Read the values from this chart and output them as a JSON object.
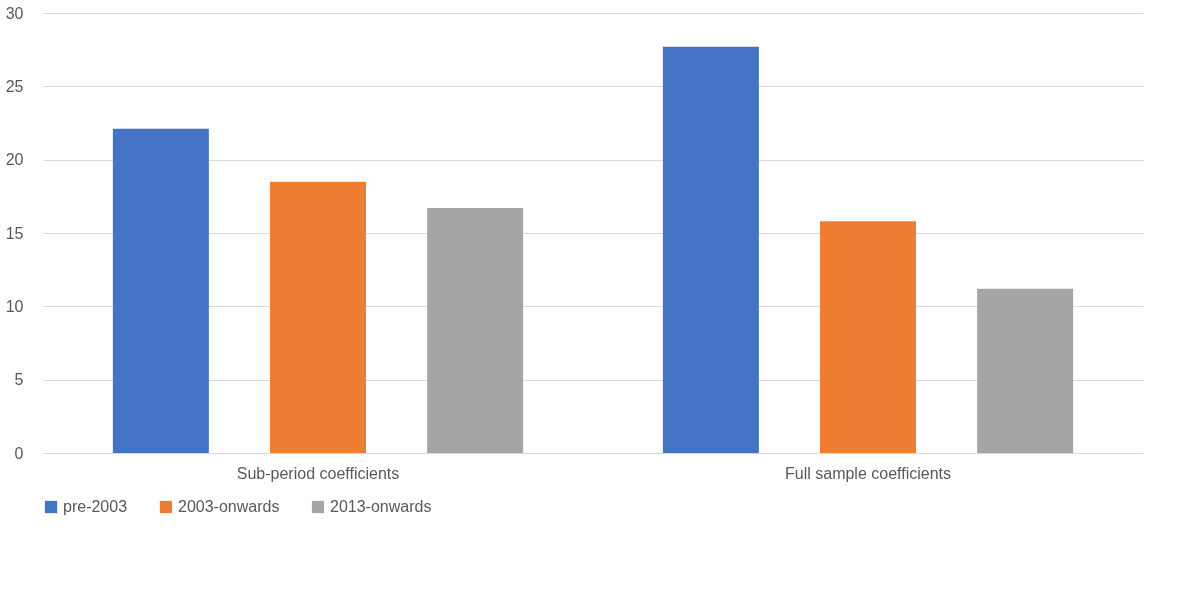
{
  "chart_data": {
    "type": "bar",
    "categories": [
      "Sub-period coefficients",
      "Full sample coefficients"
    ],
    "series": [
      {
        "name": "pre-2003",
        "color": "#4472c4",
        "values": [
          22.1,
          27.7
        ]
      },
      {
        "name": "2003-onwards",
        "color": "#ed7d31",
        "values": [
          18.5,
          15.8
        ]
      },
      {
        "name": "2013-onwards",
        "color": "#a5a5a5",
        "values": [
          16.7,
          11.2
        ]
      }
    ],
    "ylim": [
      0,
      30
    ],
    "yticks": [
      0,
      5,
      10,
      15,
      20,
      25,
      30
    ],
    "grid": "y",
    "legend": "bottom"
  }
}
